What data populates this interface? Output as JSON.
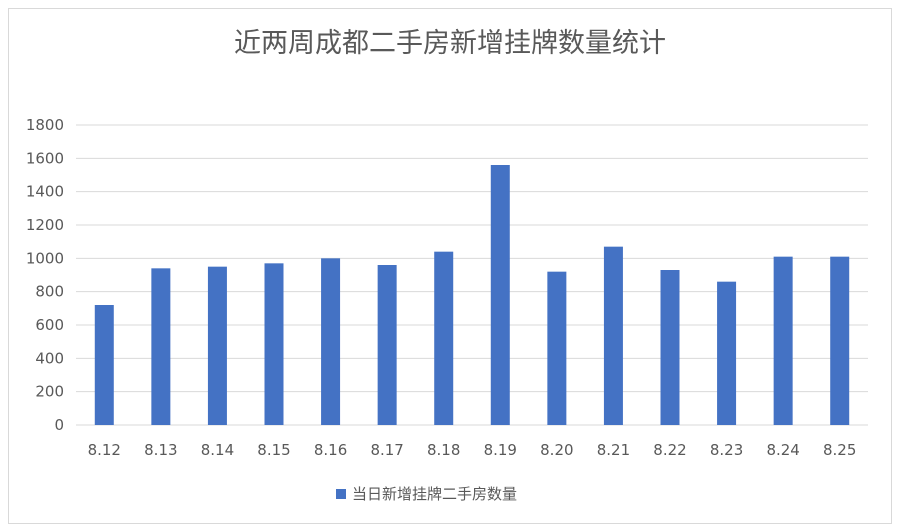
{
  "chart_data": {
    "type": "bar",
    "title": "近两周成都二手房新增挂牌数量统计",
    "categories": [
      "8.12",
      "8.13",
      "8.14",
      "8.15",
      "8.16",
      "8.17",
      "8.18",
      "8.19",
      "8.20",
      "8.21",
      "8.22",
      "8.23",
      "8.24",
      "8.25"
    ],
    "series": [
      {
        "name": "当日新增挂牌二手房数量",
        "values": [
          720,
          940,
          950,
          970,
          1000,
          960,
          1040,
          1560,
          920,
          1070,
          930,
          860,
          1010,
          1010
        ]
      }
    ],
    "ylim": [
      0,
      1800
    ],
    "yticks": [
      "0",
      "200",
      "400",
      "600",
      "800",
      "1000",
      "1200",
      "1400",
      "1600",
      "1800"
    ],
    "grid": true,
    "legend": "bottom",
    "colors": {
      "bar": "#4472c4",
      "grid": "#d9d9d9",
      "text": "#595959"
    }
  }
}
